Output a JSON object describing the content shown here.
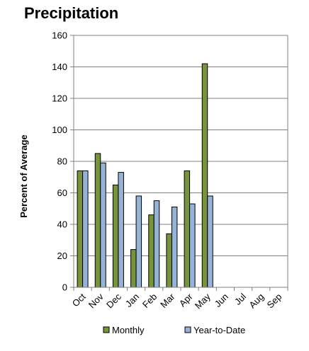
{
  "chart_data": {
    "type": "bar",
    "title": "Precipitation",
    "xlabel": "",
    "ylabel": "Percent of Average",
    "categories": [
      "Oct",
      "Nov",
      "Dec",
      "Jan",
      "Feb",
      "Mar",
      "Apr",
      "May",
      "Jun",
      "Jul",
      "Aug",
      "Sep"
    ],
    "series": [
      {
        "name": "Monthly",
        "color": "#77933c",
        "values": [
          74,
          85,
          65,
          24,
          46,
          34,
          74,
          142,
          null,
          null,
          null,
          null
        ]
      },
      {
        "name": "Year-to-Date",
        "color": "#95b3d7",
        "values": [
          74,
          79,
          73,
          58,
          55,
          51,
          53,
          58,
          null,
          null,
          null,
          null
        ]
      }
    ],
    "ylim": [
      0,
      160
    ],
    "yticks": [
      0,
      20,
      40,
      60,
      80,
      100,
      120,
      140,
      160
    ],
    "grid": true,
    "legend": "bottom"
  }
}
